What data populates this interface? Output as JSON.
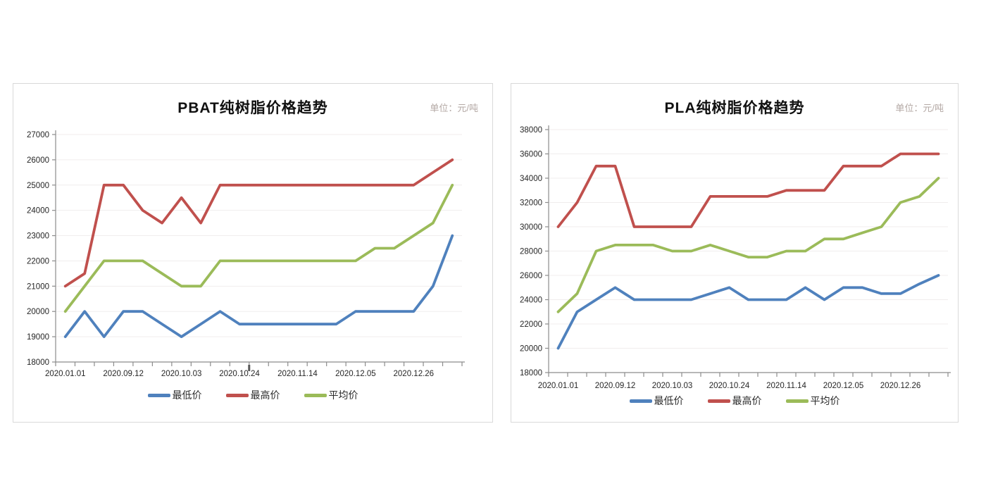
{
  "page": {
    "background": "#ffffff"
  },
  "colors": {
    "min_price": "#4F81BD",
    "max_price": "#C0504D",
    "avg_price": "#9BBB59",
    "gridline": "#F0EDED",
    "axis": "#8C8C8C",
    "tick_highlight": "#595959",
    "axis_label": "#262626",
    "title": "#111111",
    "unit": "#b3a8a4",
    "card_border": "#d9d9d9"
  },
  "chart_data": [
    {
      "type": "line",
      "title": "PBAT纯树脂价格趋势",
      "unit_label": "单位：元/吨",
      "ylim": [
        18000,
        27000
      ],
      "y_step": 1000,
      "grid": true,
      "legend_position": "bottom",
      "n_points": 21,
      "x_tick_labels": [
        "2020.01.01",
        "2020.09.12",
        "2020.10.03",
        "2020.10.24",
        "2020.11.14",
        "2020.12.05",
        "2020.12.26"
      ],
      "x_tick_indices": [
        0,
        3,
        6,
        9,
        12,
        15,
        18
      ],
      "series": [
        {
          "name": "最低价",
          "color": "#4F81BD",
          "values": [
            19000,
            20000,
            19000,
            20000,
            20000,
            19500,
            19000,
            19500,
            20000,
            19500,
            19500,
            19500,
            19500,
            19500,
            19500,
            20000,
            20000,
            20000,
            20000,
            21000,
            23000
          ]
        },
        {
          "name": "最高价",
          "color": "#C0504D",
          "values": [
            21000,
            21500,
            25000,
            25000,
            24000,
            23500,
            24500,
            23500,
            25000,
            25000,
            25000,
            25000,
            25000,
            25000,
            25000,
            25000,
            25000,
            25000,
            25000,
            25500,
            26000
          ]
        },
        {
          "name": "平均价",
          "color": "#9BBB59",
          "values": [
            20000,
            21000,
            22000,
            22000,
            22000,
            21500,
            21000,
            21000,
            22000,
            22000,
            22000,
            22000,
            22000,
            22000,
            22000,
            22000,
            22500,
            22500,
            23000,
            23500,
            25000
          ]
        }
      ]
    },
    {
      "type": "line",
      "title": "PLA纯树脂价格趋势",
      "unit_label": "单位：元/吨",
      "ylim": [
        18000,
        38000
      ],
      "y_step": 2000,
      "grid": true,
      "legend_position": "bottom",
      "n_points": 21,
      "x_tick_labels": [
        "2020.01.01",
        "2020.09.12",
        "2020.10.03",
        "2020.10.24",
        "2020.11.14",
        "2020.12.05",
        "2020.12.26"
      ],
      "x_tick_indices": [
        0,
        3,
        6,
        9,
        12,
        15,
        18
      ],
      "series": [
        {
          "name": "最低价",
          "color": "#4F81BD",
          "values": [
            20000,
            23000,
            24000,
            25000,
            24000,
            24000,
            24000,
            24000,
            24500,
            25000,
            24000,
            24000,
            24000,
            25000,
            24000,
            25000,
            25000,
            24500,
            24500,
            25300,
            26000
          ]
        },
        {
          "name": "最高价",
          "color": "#C0504D",
          "values": [
            30000,
            32000,
            35000,
            35000,
            30000,
            30000,
            30000,
            30000,
            32500,
            32500,
            32500,
            32500,
            33000,
            33000,
            33000,
            35000,
            35000,
            35000,
            36000,
            36000,
            36000
          ]
        },
        {
          "name": "平均价",
          "color": "#9BBB59",
          "values": [
            23000,
            24500,
            28000,
            28500,
            28500,
            28500,
            28000,
            28000,
            28500,
            28000,
            27500,
            27500,
            28000,
            28000,
            29000,
            29000,
            29500,
            30000,
            32000,
            32500,
            34000
          ]
        }
      ]
    }
  ]
}
